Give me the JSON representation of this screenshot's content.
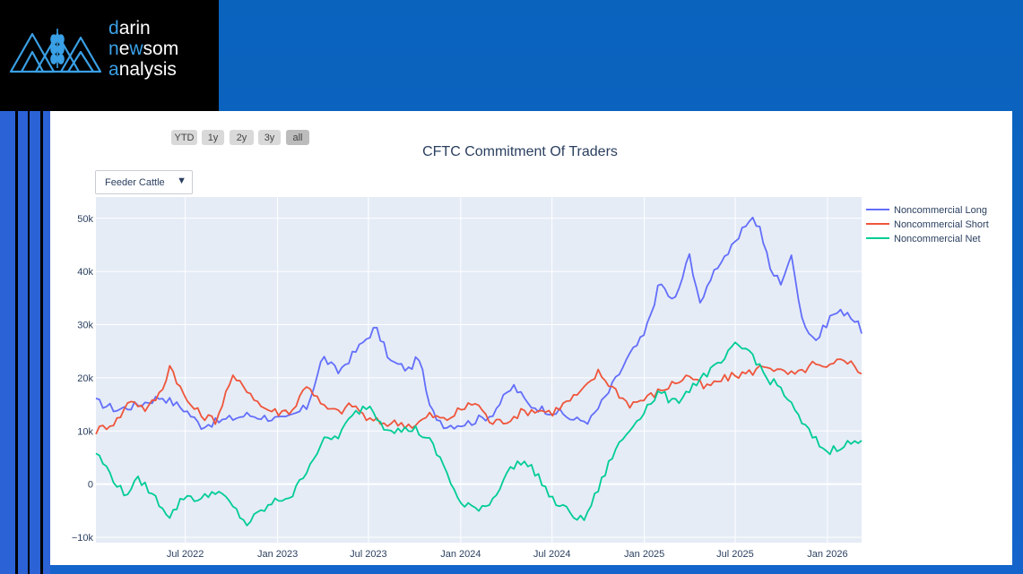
{
  "logo": {
    "line1_accent": "d",
    "line1_rest": "arin",
    "line2_accent_a": "n",
    "line2_mid": "e",
    "line2_accent_b": "w",
    "line2_rest": "som",
    "line3_accent": "a",
    "line3_rest": "nalysis"
  },
  "range_selector": {
    "buttons": [
      {
        "label": "YTD",
        "active": false
      },
      {
        "label": "1y",
        "active": false
      },
      {
        "label": "2y",
        "active": false
      },
      {
        "label": "3y",
        "active": false
      },
      {
        "label": "all",
        "active": true
      }
    ]
  },
  "dropdown": {
    "selected": "Feeder Cattle",
    "arrow": "▼"
  },
  "colors": {
    "plot_bg": "#e5ecf6",
    "grid": "#ffffff",
    "long": "#636efa",
    "short": "#ef553b",
    "net": "#00cc96",
    "logo_accent": "#3aa0e6"
  },
  "chart_data": {
    "type": "line",
    "title": "CFTC Commitment Of Traders",
    "xlabel": "",
    "ylabel": "",
    "x_ticks": [
      "Jul 2022",
      "Jan 2023",
      "Jul 2023",
      "Jan 2024",
      "Jul 2024",
      "Jan 2025",
      "Jul 2025",
      "Jan 2026"
    ],
    "y_ticks": [
      "50k",
      "40k",
      "30k",
      "20k",
      "10k",
      "0",
      "−10k"
    ],
    "ylim": [
      -11000,
      54000
    ],
    "xlim": [
      "2022-01-04",
      "2026-03-10"
    ],
    "grid": true,
    "legend_placement": "top-right",
    "series": [
      {
        "name": "Noncommercial Long",
        "color": "#636efa",
        "x": [
          "2022-01-04",
          "2022-02-15",
          "2022-04-01",
          "2022-05-15",
          "2022-07-01",
          "2022-08-01",
          "2022-09-15",
          "2022-11-01",
          "2022-12-15",
          "2023-01-15",
          "2023-03-01",
          "2023-04-01",
          "2023-05-01",
          "2023-06-15",
          "2023-07-15",
          "2023-08-15",
          "2023-09-20",
          "2023-10-10",
          "2023-11-01",
          "2023-12-01",
          "2024-01-15",
          "2024-03-01",
          "2024-04-15",
          "2024-05-15",
          "2024-06-15",
          "2024-07-15",
          "2024-08-15",
          "2024-09-15",
          "2024-10-20",
          "2024-12-01",
          "2025-01-01",
          "2025-02-01",
          "2025-03-01",
          "2025-04-01",
          "2025-04-25",
          "2025-05-10",
          "2025-06-01",
          "2025-07-01",
          "2025-08-01",
          "2025-08-20",
          "2025-09-10",
          "2025-10-01",
          "2025-10-20",
          "2025-11-15",
          "2025-12-10",
          "2026-01-10",
          "2026-02-10",
          "2026-03-10"
        ],
        "y": [
          15500,
          14000,
          15000,
          16500,
          14000,
          11000,
          12000,
          13000,
          12500,
          12000,
          14500,
          24000,
          21000,
          26000,
          29500,
          23000,
          21500,
          24000,
          14000,
          11000,
          11500,
          13000,
          18500,
          15000,
          14000,
          13500,
          12000,
          12000,
          17000,
          24000,
          28000,
          38000,
          34000,
          43000,
          33000,
          38500,
          42000,
          45000,
          50500,
          48000,
          40000,
          38000,
          43000,
          30000,
          27000,
          32000,
          32500,
          29000
        ]
      },
      {
        "name": "Noncommercial Short",
        "color": "#ef553b",
        "x": [
          "2022-01-04",
          "2022-02-15",
          "2022-03-15",
          "2022-04-15",
          "2022-05-15",
          "2022-06-01",
          "2022-07-01",
          "2022-08-01",
          "2022-09-01",
          "2022-10-01",
          "2022-11-01",
          "2022-12-01",
          "2023-01-01",
          "2023-02-01",
          "2023-03-01",
          "2023-04-01",
          "2023-05-01",
          "2023-06-01",
          "2023-07-01",
          "2023-08-01",
          "2023-09-01",
          "2023-10-01",
          "2023-11-01",
          "2023-12-01",
          "2024-01-01",
          "2024-02-01",
          "2024-03-01",
          "2024-04-01",
          "2024-05-01",
          "2024-06-01",
          "2024-07-01",
          "2024-08-01",
          "2024-09-01",
          "2024-10-01",
          "2024-11-01",
          "2024-12-01",
          "2025-01-01",
          "2025-02-01",
          "2025-03-01",
          "2025-04-01",
          "2025-05-01",
          "2025-06-01",
          "2025-07-01",
          "2025-08-01",
          "2025-09-01",
          "2025-10-01",
          "2025-11-01",
          "2025-12-01",
          "2026-01-01",
          "2026-02-01",
          "2026-03-10"
        ],
        "y": [
          10000,
          12000,
          16000,
          14000,
          17500,
          22500,
          16000,
          13000,
          12000,
          20000,
          18000,
          14500,
          13500,
          14000,
          19000,
          14500,
          13500,
          15000,
          12000,
          11500,
          11500,
          11000,
          13000,
          12000,
          14000,
          15500,
          11500,
          12000,
          13500,
          14000,
          13500,
          15500,
          17500,
          21000,
          18000,
          15000,
          16000,
          17500,
          19000,
          20500,
          18000,
          19500,
          20500,
          21000,
          22500,
          21000,
          20500,
          22500,
          21500,
          24000,
          21000
        ]
      },
      {
        "name": "Noncommercial Net",
        "color": "#00cc96",
        "x": [
          "2022-01-04",
          "2022-02-01",
          "2022-03-01",
          "2022-04-01",
          "2022-05-01",
          "2022-06-01",
          "2022-07-01",
          "2022-08-01",
          "2022-09-01",
          "2022-10-01",
          "2022-11-01",
          "2022-12-01",
          "2023-01-01",
          "2023-02-01",
          "2023-03-01",
          "2023-04-01",
          "2023-05-01",
          "2023-06-01",
          "2023-07-01",
          "2023-08-01",
          "2023-09-01",
          "2023-10-01",
          "2023-11-01",
          "2023-12-01",
          "2024-01-01",
          "2024-02-01",
          "2024-03-01",
          "2024-04-01",
          "2024-05-01",
          "2024-06-01",
          "2024-07-01",
          "2024-08-01",
          "2024-09-01",
          "2024-10-01",
          "2024-11-01",
          "2024-12-01",
          "2025-01-01",
          "2025-02-01",
          "2025-03-01",
          "2025-04-01",
          "2025-05-01",
          "2025-06-01",
          "2025-07-01",
          "2025-08-01",
          "2025-09-01",
          "2025-10-01",
          "2025-11-01",
          "2025-12-01",
          "2026-01-01",
          "2026-02-01",
          "2026-03-10"
        ],
        "y": [
          6000,
          2000,
          -2000,
          1000,
          -2500,
          -6000,
          -2000,
          -3000,
          -1000,
          -4000,
          -7500,
          -5000,
          -3000,
          -2000,
          3000,
          8000,
          9000,
          13000,
          15000,
          11000,
          10000,
          10500,
          8000,
          3000,
          -4000,
          -4500,
          -3500,
          2000,
          4500,
          2000,
          -3000,
          -5000,
          -7000,
          -1000,
          6000,
          10000,
          14000,
          17500,
          15000,
          18000,
          20500,
          22500,
          26000,
          25000,
          20000,
          18000,
          13000,
          9000,
          6000,
          7500,
          8000
        ]
      }
    ]
  }
}
